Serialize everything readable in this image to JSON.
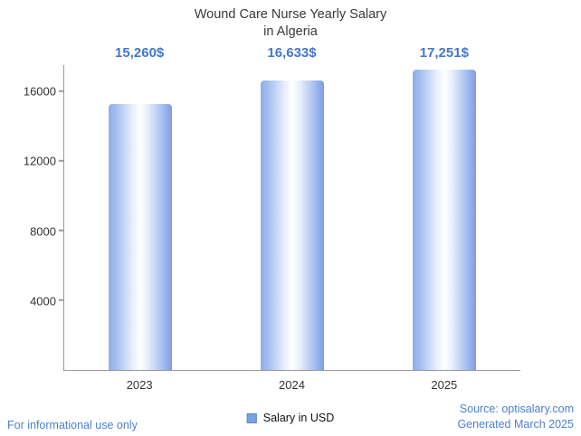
{
  "title_lines": [
    "Wound Care Nurse Yearly Salary",
    "in Algeria"
  ],
  "chart_data": {
    "type": "bar",
    "title": "Wound Care Nurse Yearly Salary in Algeria",
    "categories": [
      "2023",
      "2024",
      "2025"
    ],
    "values": [
      15260,
      16633,
      17251
    ],
    "value_labels": [
      "15,260$",
      "16,633$",
      "17,251$"
    ],
    "xlabel": "",
    "ylabel": "",
    "ylim": [
      0,
      17500
    ],
    "yticks": [
      4000,
      8000,
      12000,
      16000
    ],
    "grid": false,
    "legend_position": "bottom",
    "series_name": "Salary in USD",
    "bar_style": "vertical cylinder gradient, blue edges to white center"
  },
  "legend": {
    "label": "Salary in USD",
    "swatch_color": "#7ba2e4"
  },
  "footer": {
    "left": "For informational use only",
    "source": "Source: optisalary.com",
    "generated": "Generated March 2025"
  },
  "colors": {
    "accent_blue": "#4577cb",
    "footer_blue": "#4b7fd6",
    "title_text": "#3a3a3a",
    "tick_text": "#333333",
    "axis": "#9a9a9a",
    "bar_edge_blue": "#7e9ce0",
    "bar_center": "#ffffff"
  }
}
